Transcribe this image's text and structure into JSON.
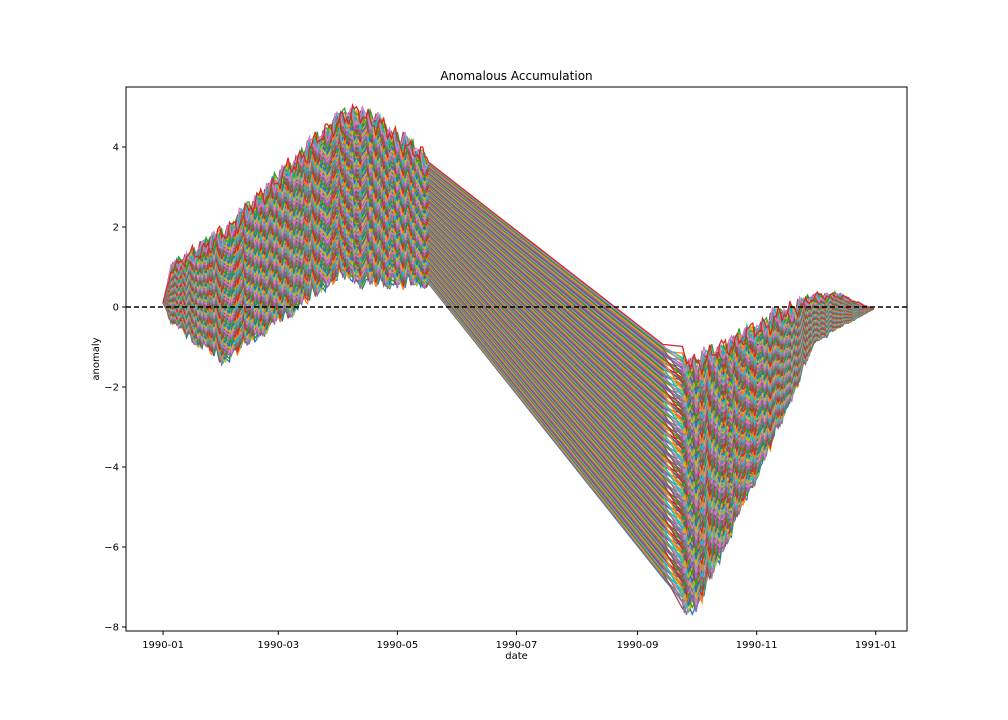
{
  "chart_data": {
    "type": "line",
    "title": "Anomalous Accumulation",
    "xlabel": "date",
    "ylabel": "anomaly",
    "x_ticks": [
      "1990-01",
      "1990-03",
      "1990-05",
      "1990-07",
      "1990-09",
      "1990-11",
      "1991-01"
    ],
    "y_ticks": [
      "−8",
      "−6",
      "−4",
      "−2",
      "0",
      "2",
      "4"
    ],
    "ylim": [
      -8.1,
      5.5
    ],
    "xlim": [
      "1989-12-13",
      "1991-01-17"
    ],
    "grid": false,
    "legend": "none",
    "zero_line": {
      "y": 0,
      "style": "dashed",
      "color": "#000000"
    },
    "colors": [
      "#1f77b4",
      "#ff7f0e",
      "#2ca02c",
      "#d62728",
      "#9467bd",
      "#8c564b",
      "#e377c2",
      "#7f7f7f",
      "#bcbd22",
      "#17becf"
    ],
    "series_count": 220,
    "envelope": {
      "x": [
        "1990-01-01",
        "1990-01-05",
        "1990-02-01",
        "1990-04-01",
        "1990-04-13",
        "1990-05-15",
        "1990-09-24",
        "1990-10-01",
        "1990-12-01",
        "1990-12-12",
        "1990-12-31"
      ],
      "upper": [
        0.1,
        0.95,
        1.8,
        4.7,
        4.85,
        3.7,
        -1.3,
        -1.4,
        0.25,
        0.3,
        -0.05
      ],
      "lower": [
        0.1,
        -0.3,
        -1.2,
        0.9,
        0.75,
        0.7,
        -7.4,
        -7.45,
        -0.8,
        -0.5,
        -0.05
      ]
    }
  }
}
